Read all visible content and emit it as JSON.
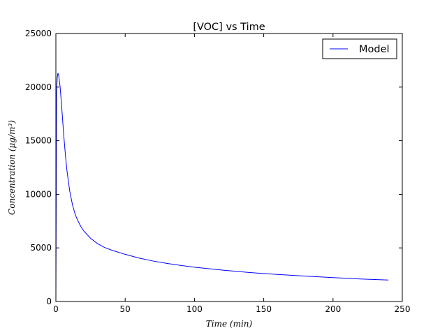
{
  "chart_data": {
    "type": "line",
    "title": "[VOC] vs Time",
    "xlabel": "Time (min)",
    "ylabel": "Concentration (μg/m³)",
    "xlim": [
      0,
      250
    ],
    "ylim": [
      0,
      25000
    ],
    "xticks": [
      "0",
      "50",
      "100",
      "150",
      "200",
      "250"
    ],
    "yticks": [
      "0",
      "5000",
      "10000",
      "15000",
      "20000",
      "25000"
    ],
    "grid": false,
    "legend_position": "top-right",
    "series": [
      {
        "name": "Model",
        "color": "#0000ff",
        "x": [
          0,
          0.5,
          1,
          1.5,
          2,
          3,
          4,
          5,
          6,
          7,
          8,
          10,
          12,
          14,
          16,
          18,
          20,
          25,
          30,
          35,
          40,
          50,
          60,
          70,
          80,
          90,
          100,
          120,
          140,
          160,
          180,
          200,
          220,
          240
        ],
        "y": [
          0,
          19500,
          20900,
          21300,
          21100,
          20100,
          18500,
          16700,
          15000,
          13500,
          12200,
          10300,
          9000,
          8100,
          7500,
          7000,
          6600,
          5900,
          5400,
          5050,
          4800,
          4400,
          4050,
          3780,
          3560,
          3370,
          3200,
          2930,
          2700,
          2520,
          2370,
          2230,
          2100,
          2000
        ]
      }
    ]
  }
}
